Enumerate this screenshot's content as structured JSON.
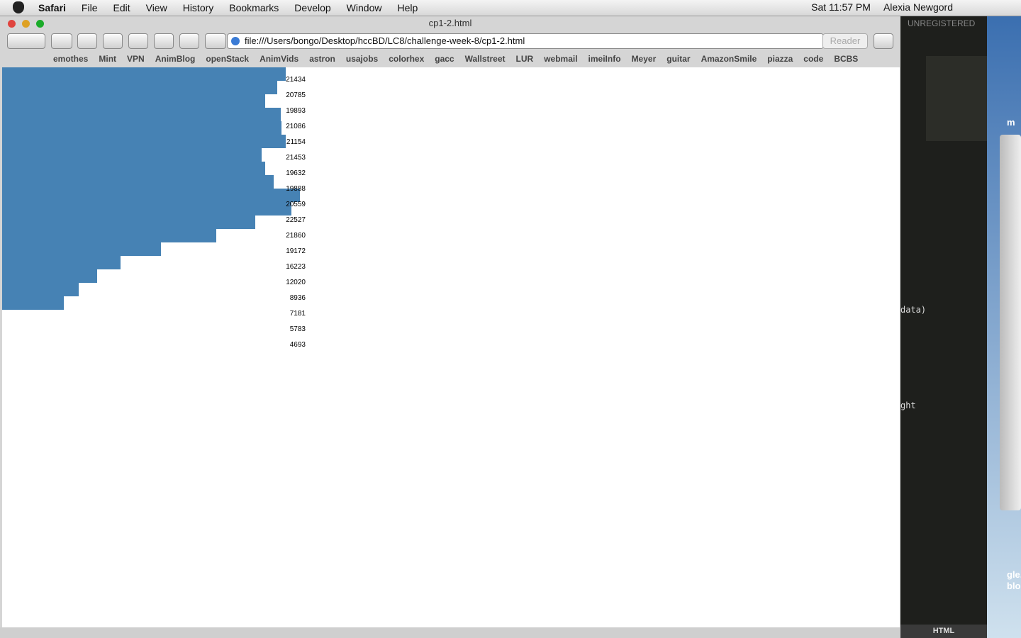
{
  "menubar": {
    "items": [
      "Safari",
      "File",
      "Edit",
      "View",
      "History",
      "Bookmarks",
      "Develop",
      "Window",
      "Help"
    ],
    "clock": "Sat 11:57 PM",
    "user": "Alexia Newgord"
  },
  "browser": {
    "title": "cp1-2.html",
    "url": "file:///Users/bongo/Desktop/hccBD/LC8/challenge-week-8/cp1-2.html",
    "reader": "Reader",
    "bookmarks": [
      "emothes",
      "Mint",
      "VPN",
      "AnimBlog",
      "openStack",
      "AnimVids",
      "astron",
      "usajobs",
      "colorhex",
      "gacc",
      "Wallstreet",
      "LUR",
      "webmail",
      "imeiInfo",
      "Meyer",
      "guitar",
      "AmazonSmile",
      "piazza",
      "code",
      "BCBS"
    ]
  },
  "content": {
    "bars": {
      "values": [
        21434,
        20785,
        19893,
        21086,
        21154,
        21453,
        19632,
        19888,
        20559,
        22527,
        21860,
        19172,
        16223,
        12020,
        8936,
        7181,
        5783,
        4693
      ],
      "color": "#4682b4"
    }
  },
  "editor": {
    "badge": "UNREGISTERED",
    "fragments": [
      "data)",
      "ght",
      "m",
      "gle.",
      "bloc"
    ],
    "status": "HTML"
  }
}
